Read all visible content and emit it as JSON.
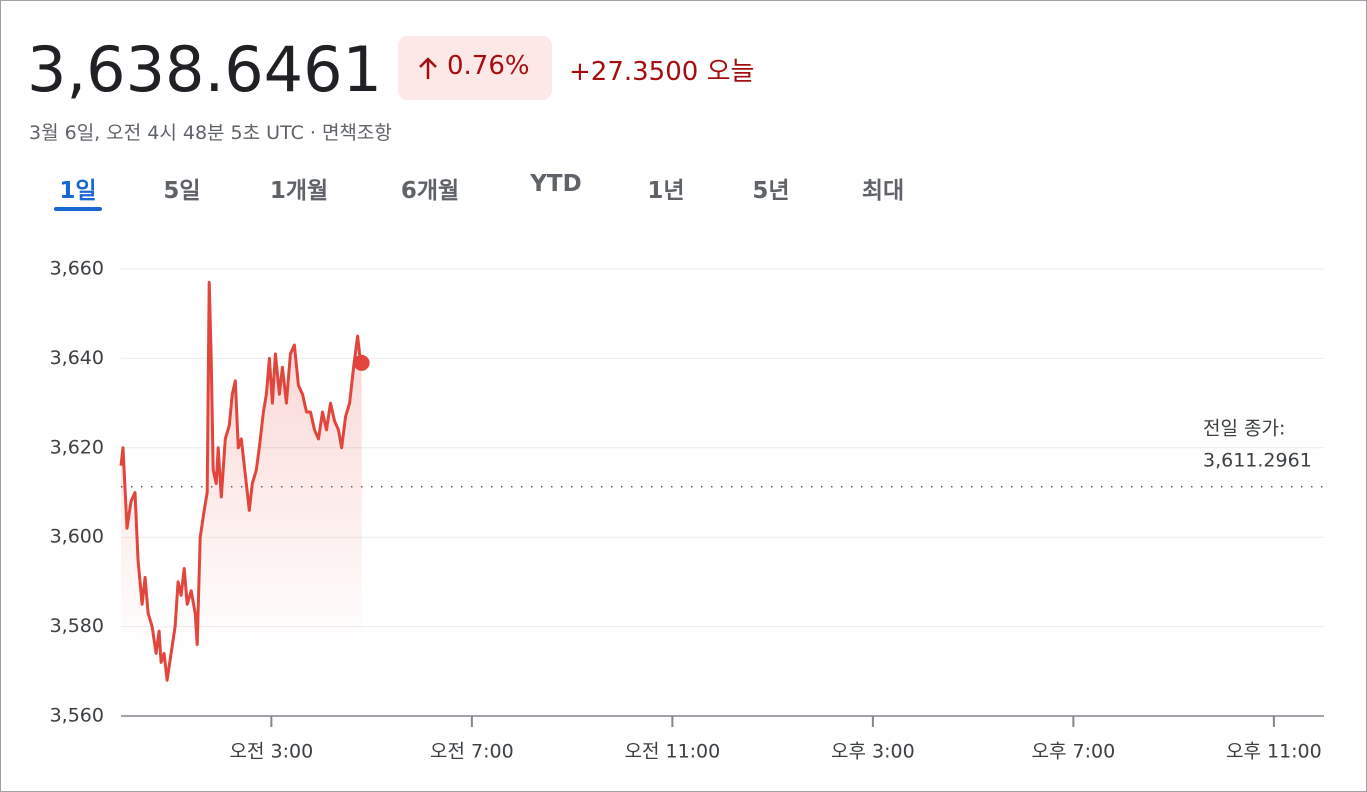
{
  "header": {
    "price": "3,638.6461",
    "change_percent": "0.76%",
    "change": "+27.3500 오늘",
    "timestamp": "3월 6일, 오전 4시 48분 5초 UTC · 면책조항"
  },
  "tabs": [
    "1일",
    "5일",
    "1개월",
    "6개월",
    "YTD",
    "1년",
    "5년",
    "최대"
  ],
  "chart_data": {
    "type": "line",
    "x": [
      0,
      0.04,
      0.12,
      0.2,
      0.28,
      0.34,
      0.42,
      0.48,
      0.54,
      0.62,
      0.7,
      0.76,
      0.8,
      0.86,
      0.92,
      1.0,
      1.08,
      1.14,
      1.2,
      1.26,
      1.32,
      1.4,
      1.48,
      1.52,
      1.58,
      1.66,
      1.72,
      1.76,
      1.8,
      1.84,
      1.9,
      1.94,
      2.0,
      2.08,
      2.16,
      2.22,
      2.28,
      2.34,
      2.4,
      2.48,
      2.56,
      2.62,
      2.7,
      2.76,
      2.84,
      2.9,
      2.96,
      3.02,
      3.08,
      3.16,
      3.22,
      3.3,
      3.38,
      3.46,
      3.54,
      3.62,
      3.7,
      3.78,
      3.86,
      3.94,
      4.02,
      4.1,
      4.18,
      4.26,
      4.34,
      4.4,
      4.48,
      4.56,
      4.64,
      4.72,
      4.76,
      4.8
    ],
    "series": [
      {
        "color": "#e2453c",
        "values": [
          3616,
          3620,
          3602,
          3608,
          3610,
          3595,
          3585,
          3591,
          3583,
          3580,
          3574,
          3579,
          3572,
          3574,
          3568,
          3574,
          3580,
          3590,
          3587,
          3593,
          3585,
          3588,
          3583,
          3576,
          3600,
          3606,
          3610,
          3657,
          3640,
          3615,
          3612,
          3620,
          3609,
          3622,
          3625,
          3632,
          3635,
          3620,
          3622,
          3614,
          3606,
          3612,
          3615,
          3620,
          3628,
          3632,
          3640,
          3630,
          3641,
          3632,
          3638,
          3630,
          3641,
          3643,
          3634,
          3632,
          3628,
          3628,
          3624,
          3622,
          3628,
          3624,
          3630,
          3626,
          3624,
          3620,
          3627,
          3630,
          3638,
          3645,
          3641,
          3639
        ]
      }
    ],
    "xlim": [
      0,
      24
    ],
    "xticks": [
      {
        "value": 3,
        "label": "오전 3:00"
      },
      {
        "value": 7,
        "label": "오전 7:00"
      },
      {
        "value": 11,
        "label": "오전 11:00"
      },
      {
        "value": 15,
        "label": "오후 3:00"
      },
      {
        "value": 19,
        "label": "오후 7:00"
      },
      {
        "value": 23,
        "label": "오후 11:00"
      }
    ],
    "ylim": [
      3560,
      3660
    ],
    "yticks": [
      {
        "value": 3560,
        "label": "3,560"
      },
      {
        "value": 3580,
        "label": "3,580"
      },
      {
        "value": 3600,
        "label": "3,600"
      },
      {
        "value": 3620,
        "label": "3,620"
      },
      {
        "value": 3640,
        "label": "3,640"
      },
      {
        "value": 3660,
        "label": "3,660"
      }
    ],
    "grid": true,
    "previous_close_title": "전일 종가:",
    "previous_close": {
      "value": 3611.2961,
      "label": "3,611.2961"
    }
  }
}
